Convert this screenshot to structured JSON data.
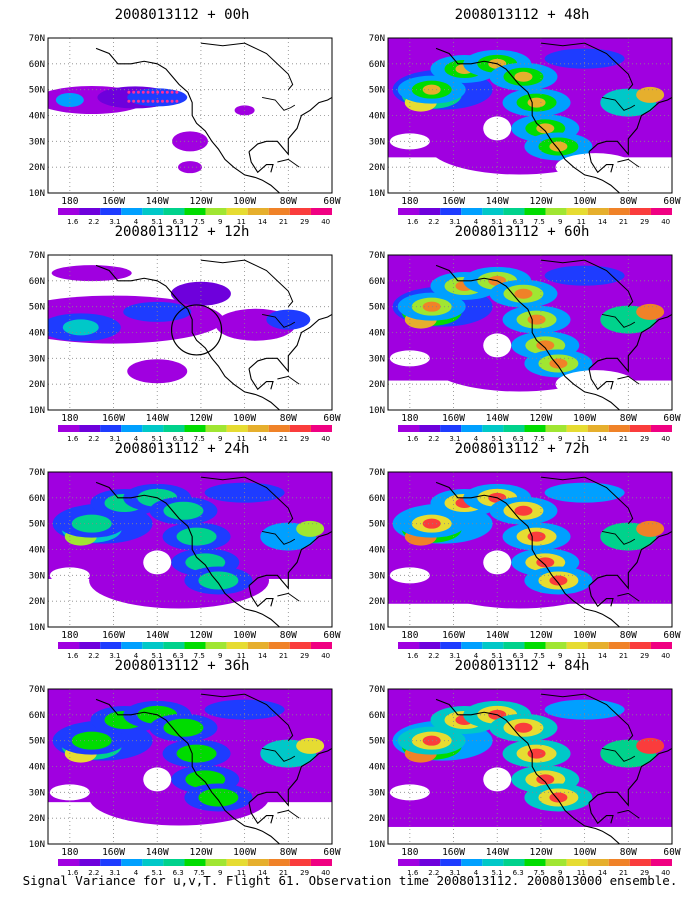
{
  "panels": [
    {
      "title": "2008013112 + 00h",
      "lead": "00h",
      "marker": "dots"
    },
    {
      "title": "2008013112 + 48h",
      "lead": "48h"
    },
    {
      "title": "2008013112 + 12h",
      "lead": "12h",
      "marker": "circle"
    },
    {
      "title": "2008013112 + 60h",
      "lead": "60h"
    },
    {
      "title": "2008013112 + 24h",
      "lead": "24h"
    },
    {
      "title": "2008013112 + 72h",
      "lead": "72h"
    },
    {
      "title": "2008013112 + 36h",
      "lead": "36h"
    },
    {
      "title": "2008013112 + 84h",
      "lead": "84h"
    }
  ],
  "lat_labels": [
    "70N",
    "60N",
    "50N",
    "40N",
    "30N",
    "20N",
    "10N"
  ],
  "lon_labels": [
    "180",
    "160W",
    "140W",
    "120W",
    "100W",
    "80W",
    "60W"
  ],
  "colorbar": {
    "labels": [
      "1.6",
      "2.2",
      "3.1",
      "4",
      "5.1",
      "6.3",
      "7.5",
      "9",
      "11",
      "14",
      "21",
      "29",
      "40"
    ],
    "colors": [
      "#a000e0",
      "#6e00dc",
      "#1e3cff",
      "#00a0ff",
      "#00c8c8",
      "#00d28c",
      "#00dc00",
      "#a0e632",
      "#e6dc32",
      "#e6af2d",
      "#f08228",
      "#fa3c3c",
      "#f00082"
    ],
    "no_data_color": "#ffffff"
  },
  "footer": "Signal Variance for u,v,T. Flight 61. Observation time 2008013112. 2008013000 ensemble."
}
